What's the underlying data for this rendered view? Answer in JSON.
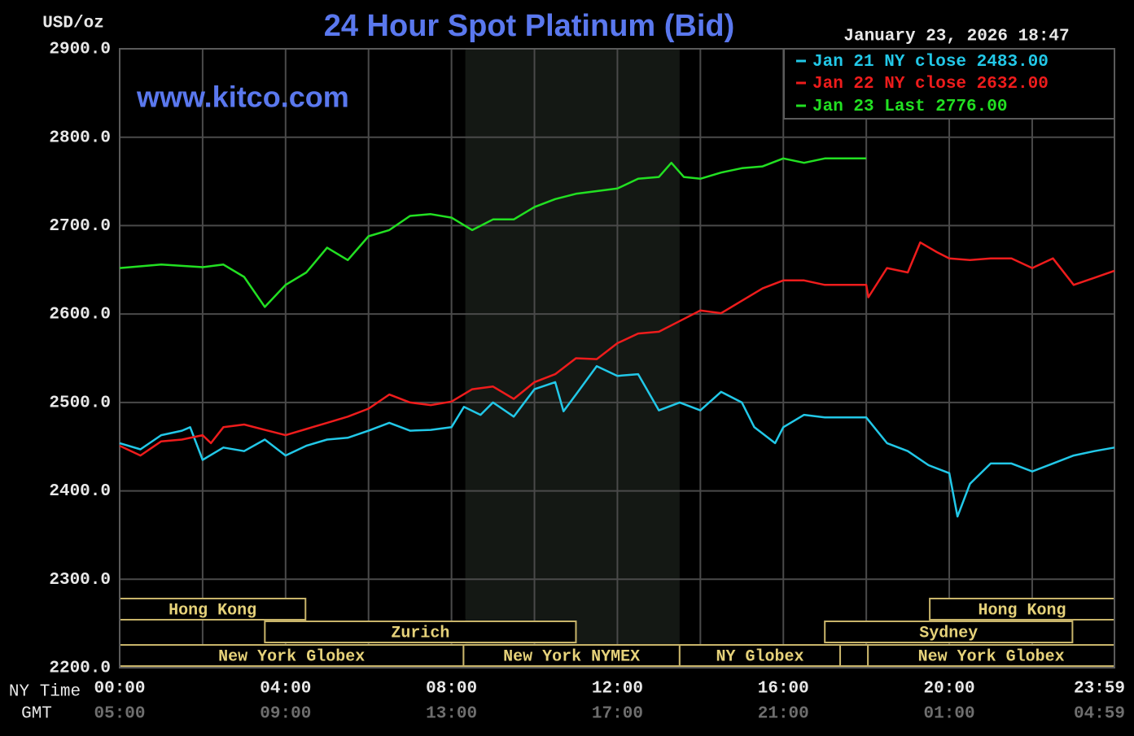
{
  "chart_data": {
    "type": "line",
    "title": "24 Hour Spot Platinum (Bid)",
    "date": "January 23, 2026 18:47",
    "watermark": "www.kitco.com",
    "ylabel": "USD/oz",
    "x_axis_label": "NY Time",
    "x2_axis_label": "GMT",
    "ylim": [
      2200,
      2900
    ],
    "yticks": [
      {
        "value": 2200,
        "label": "2200.0"
      },
      {
        "value": 2300,
        "label": "2300.0"
      },
      {
        "value": 2400,
        "label": "2400.0"
      },
      {
        "value": 2500,
        "label": "2500.0"
      },
      {
        "value": 2600,
        "label": "2600.0"
      },
      {
        "value": 2700,
        "label": "2700.0"
      },
      {
        "value": 2800,
        "label": "2800.0"
      },
      {
        "value": 2900,
        "label": "2900.0"
      }
    ],
    "xlim": [
      0,
      23.983
    ],
    "xticks": [
      {
        "value": 0,
        "label": "00:00"
      },
      {
        "value": 4,
        "label": "04:00"
      },
      {
        "value": 8,
        "label": "08:00"
      },
      {
        "value": 12,
        "label": "12:00"
      },
      {
        "value": 16,
        "label": "16:00"
      },
      {
        "value": 20,
        "label": "20:00"
      },
      {
        "value": 23.983,
        "label": "23:59"
      }
    ],
    "x2_labels": [
      "05:00",
      "09:00",
      "13:00",
      "17:00",
      "21:00",
      "01:00",
      "04:59"
    ],
    "xgrid": [
      0,
      2,
      4,
      6,
      8,
      10,
      12,
      14,
      16,
      18,
      20,
      22,
      23.983
    ],
    "grid": true,
    "shaded": [
      8.333,
      13.5
    ],
    "sessions": [
      {
        "label": "Hong Kong",
        "start": 0,
        "end": 4.48,
        "row": 0
      },
      {
        "label": "Hong Kong",
        "start": 19.53,
        "end": 23.983,
        "row": 0
      },
      {
        "label": "Zurich",
        "start": 3.5,
        "end": 11,
        "row": 1
      },
      {
        "label": "Sydney",
        "start": 17,
        "end": 22.97,
        "row": 1
      },
      {
        "label": "New York Globex",
        "start": 0,
        "end": 8.29,
        "row": 2
      },
      {
        "label": "New York NYMEX",
        "start": 8.29,
        "end": 13.5,
        "row": 2
      },
      {
        "label": "NY Globex",
        "start": 13.5,
        "end": 17.37,
        "row": 2
      },
      {
        "start": 17.37,
        "end": 18.04,
        "row": 2
      },
      {
        "label": "New York Globex",
        "start": 18.04,
        "end": 23.983,
        "row": 2
      }
    ],
    "series": [
      {
        "name": "Jan 21 NY close",
        "color": "#22c8e8",
        "close": 2483,
        "close_label": "2483.00",
        "x": [
          0,
          0.5,
          1,
          1.5,
          1.7,
          2,
          2.5,
          3,
          3.5,
          4,
          4.5,
          5,
          5.5,
          6,
          6.5,
          7,
          7.5,
          8,
          8.3,
          8.7,
          9,
          9.5,
          10,
          10.5,
          10.7,
          11,
          11.5,
          12,
          12.5,
          13,
          13.5,
          14,
          14.5,
          15,
          15.3,
          15.8,
          16,
          16.5,
          17,
          18,
          18.5,
          19,
          19.5,
          20,
          20.2,
          20.5,
          21,
          21.5,
          22,
          22.5,
          23,
          23.5,
          23.983
        ],
        "values": [
          2454,
          2447,
          2463,
          2468,
          2472,
          2435,
          2449,
          2445,
          2458,
          2440,
          2451,
          2458,
          2460,
          2468,
          2477,
          2468,
          2469,
          2472,
          2495,
          2486,
          2500,
          2484,
          2515,
          2523,
          2490,
          2509,
          2541,
          2530,
          2532,
          2491,
          2500,
          2491,
          2512,
          2500,
          2472,
          2454,
          2472,
          2486,
          2483,
          2483,
          2454,
          2445,
          2429,
          2420,
          2371,
          2408,
          2431,
          2431,
          2422,
          2431,
          2440,
          2445,
          2449
        ]
      },
      {
        "name": "Jan 22 NY close",
        "color": "#ee1c1c",
        "close": 2632,
        "close_label": "2632.00",
        "x": [
          0,
          0.5,
          1,
          1.5,
          2,
          2.2,
          2.5,
          3,
          3.5,
          4,
          4.5,
          5,
          5.5,
          6,
          6.5,
          7,
          7.5,
          8,
          8.5,
          9,
          9.5,
          10,
          10.5,
          11,
          11.5,
          12,
          12.5,
          13,
          13.5,
          14,
          14.5,
          15,
          15.5,
          16,
          16.5,
          17,
          17.5,
          18,
          18.05,
          18.5,
          19,
          19.3,
          19.7,
          20,
          20.5,
          21,
          21.5,
          22,
          22.5,
          23,
          23.5,
          23.983
        ],
        "values": [
          2451,
          2440,
          2456,
          2458,
          2463,
          2454,
          2472,
          2475,
          2469,
          2463,
          2470,
          2477,
          2484,
          2493,
          2509,
          2500,
          2497,
          2501,
          2515,
          2518,
          2504,
          2523,
          2532,
          2550,
          2549,
          2567,
          2578,
          2580,
          2592,
          2604,
          2601,
          2615,
          2629,
          2638,
          2638,
          2633,
          2633,
          2633,
          2619,
          2652,
          2647,
          2681,
          2670,
          2663,
          2661,
          2663,
          2663,
          2652,
          2663,
          2633,
          2641,
          2649
        ]
      },
      {
        "name": "Jan 23 Last",
        "color": "#22e022",
        "close": 2776,
        "close_label": "2776.00",
        "x": [
          0,
          1,
          2,
          2.5,
          3,
          3.5,
          4,
          4.5,
          5,
          5.5,
          6,
          6.5,
          7,
          7.5,
          8,
          8.5,
          9,
          9.5,
          10,
          10.5,
          11,
          11.5,
          12,
          12.5,
          13,
          13.3,
          13.6,
          14,
          14.5,
          15,
          15.5,
          16,
          16.5,
          17,
          17.5,
          18
        ],
        "values": [
          2652,
          2656,
          2653,
          2656,
          2642,
          2608,
          2633,
          2647,
          2675,
          2661,
          2688,
          2695,
          2711,
          2713,
          2709,
          2695,
          2707,
          2707,
          2721,
          2730,
          2736,
          2739,
          2742,
          2753,
          2755,
          2771,
          2755,
          2753,
          2760,
          2765,
          2767,
          2776,
          2771,
          2776,
          2776,
          2776
        ]
      }
    ]
  }
}
